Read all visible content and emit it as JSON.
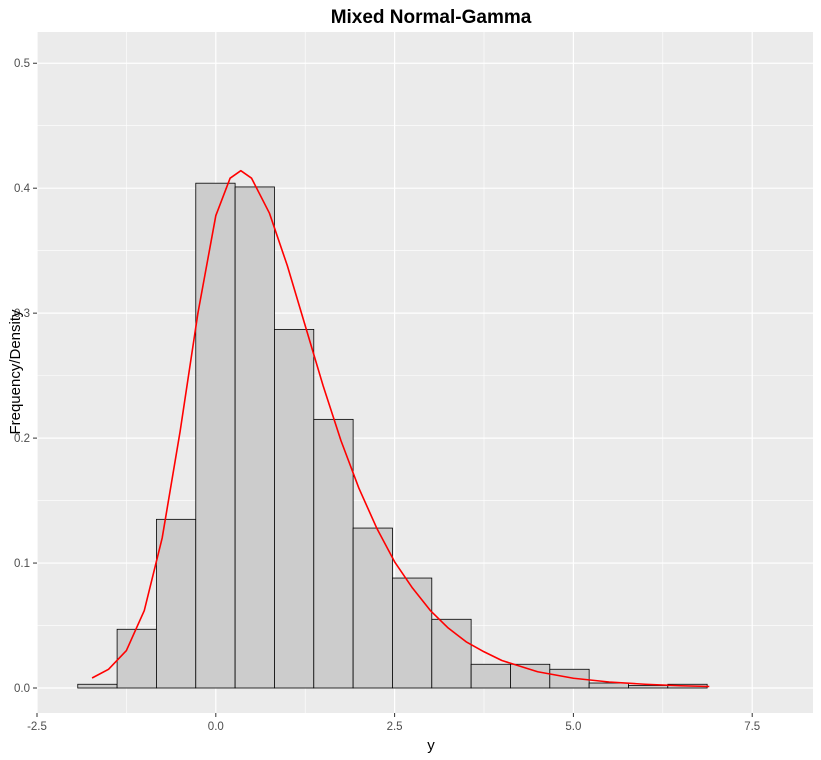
{
  "chart_data": {
    "type": "bar",
    "subtype": "histogram-with-density-curve",
    "title": "Mixed Normal-Gamma",
    "xlabel": "y",
    "ylabel": "Frequency/Density",
    "xlim": [
      -2.5,
      8.35
    ],
    "ylim": [
      -0.02,
      0.525
    ],
    "x_ticks": [
      -2.5,
      0.0,
      2.5,
      5.0,
      7.5
    ],
    "x_tick_labels": [
      "-2.5",
      "0.0",
      "2.5",
      "5.0",
      "7.5"
    ],
    "y_ticks": [
      0.0,
      0.1,
      0.2,
      0.3,
      0.4,
      0.5
    ],
    "y_tick_labels": [
      "0.0",
      "0.1",
      "0.2",
      "0.3",
      "0.4",
      "0.5"
    ],
    "grid": true,
    "bins": [
      {
        "x0": -1.93,
        "x1": -1.38,
        "density": 0.003
      },
      {
        "x0": -1.38,
        "x1": -0.83,
        "density": 0.047
      },
      {
        "x0": -0.83,
        "x1": -0.28,
        "density": 0.135
      },
      {
        "x0": -0.28,
        "x1": 0.27,
        "density": 0.404
      },
      {
        "x0": 0.27,
        "x1": 0.82,
        "density": 0.401
      },
      {
        "x0": 0.82,
        "x1": 1.37,
        "density": 0.287
      },
      {
        "x0": 1.37,
        "x1": 1.92,
        "density": 0.215
      },
      {
        "x0": 1.92,
        "x1": 2.47,
        "density": 0.128
      },
      {
        "x0": 2.47,
        "x1": 3.02,
        "density": 0.088
      },
      {
        "x0": 3.02,
        "x1": 3.57,
        "density": 0.055
      },
      {
        "x0": 3.57,
        "x1": 4.12,
        "density": 0.019
      },
      {
        "x0": 4.12,
        "x1": 4.67,
        "density": 0.019
      },
      {
        "x0": 4.67,
        "x1": 5.22,
        "density": 0.015
      },
      {
        "x0": 5.22,
        "x1": 5.77,
        "density": 0.004
      },
      {
        "x0": 5.77,
        "x1": 6.32,
        "density": 0.002
      },
      {
        "x0": 6.32,
        "x1": 6.87,
        "density": 0.003
      },
      {
        "x0": 6.87,
        "x1": 7.42,
        "density": 0.0
      },
      {
        "x0": 7.42,
        "x1": 7.97,
        "density": 0.0
      }
    ],
    "density_curve": {
      "color": "#ff0000",
      "points": [
        [
          -1.73,
          0.008
        ],
        [
          -1.5,
          0.015
        ],
        [
          -1.25,
          0.03
        ],
        [
          -1.0,
          0.062
        ],
        [
          -0.75,
          0.12
        ],
        [
          -0.5,
          0.205
        ],
        [
          -0.25,
          0.3
        ],
        [
          0.0,
          0.378
        ],
        [
          0.2,
          0.408
        ],
        [
          0.35,
          0.414
        ],
        [
          0.5,
          0.408
        ],
        [
          0.75,
          0.38
        ],
        [
          1.0,
          0.338
        ],
        [
          1.25,
          0.29
        ],
        [
          1.5,
          0.242
        ],
        [
          1.75,
          0.198
        ],
        [
          2.0,
          0.16
        ],
        [
          2.25,
          0.128
        ],
        [
          2.5,
          0.101
        ],
        [
          2.75,
          0.08
        ],
        [
          3.0,
          0.062
        ],
        [
          3.25,
          0.048
        ],
        [
          3.5,
          0.037
        ],
        [
          3.75,
          0.029
        ],
        [
          4.0,
          0.022
        ],
        [
          4.5,
          0.013
        ],
        [
          5.0,
          0.0078
        ],
        [
          5.5,
          0.0048
        ],
        [
          6.0,
          0.003
        ],
        [
          6.5,
          0.0018
        ],
        [
          6.9,
          0.0012
        ]
      ]
    },
    "colors": {
      "panel_background": "#ebebeb",
      "grid_major": "#ffffff",
      "bar_fill": "#cccccc",
      "bar_stroke": "#000000"
    }
  }
}
